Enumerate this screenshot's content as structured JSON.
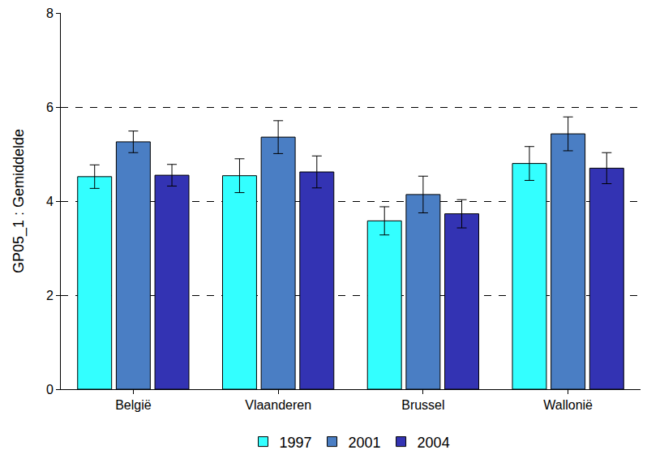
{
  "chart_data": {
    "type": "bar",
    "y_label": "GP05_1 : Gemiddelde",
    "categories": [
      "België",
      "Vlaanderen",
      "Brussel",
      "Wallonië"
    ],
    "series": [
      {
        "name": "1997",
        "color": "#33ffff",
        "values": [
          4.52,
          4.54,
          3.58,
          4.8
        ],
        "errors": [
          0.25,
          0.36,
          0.3,
          0.36
        ]
      },
      {
        "name": "2001",
        "color": "#4a7ec4",
        "values": [
          5.26,
          5.36,
          4.14,
          5.43
        ],
        "errors": [
          0.23,
          0.35,
          0.39,
          0.36
        ]
      },
      {
        "name": "2004",
        "color": "#3333b3",
        "values": [
          4.55,
          4.62,
          3.73,
          4.7
        ],
        "errors": [
          0.23,
          0.34,
          0.3,
          0.33
        ]
      }
    ],
    "ylim": [
      0,
      8
    ],
    "yticks": [
      0,
      2,
      4,
      6,
      8
    ],
    "grid": true,
    "legend": "bottom"
  }
}
